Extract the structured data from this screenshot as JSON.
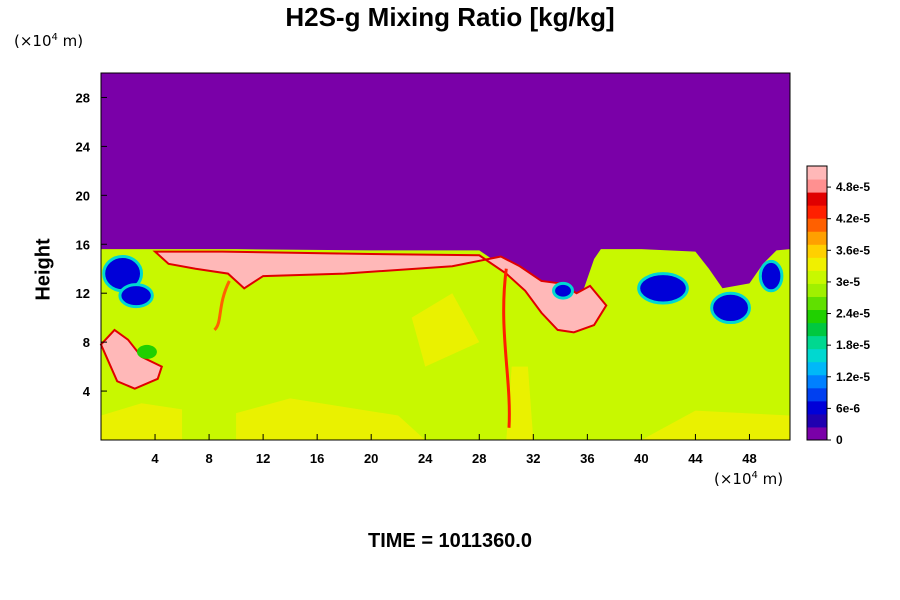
{
  "chart_data": {
    "type": "heatmap",
    "title": "H2S-g Mixing Ratio [kg/kg]",
    "ylabel": "Height",
    "xlabel": "",
    "x_unit": "(×10⁴ m)",
    "y_unit": "(×10⁴ m)",
    "footer": "TIME = 1011360.0",
    "xlim": [
      0,
      51
    ],
    "ylim": [
      0,
      30
    ],
    "x_ticks": [
      "4",
      "8",
      "12",
      "16",
      "20",
      "24",
      "28",
      "32",
      "36",
      "40",
      "44",
      "48"
    ],
    "y_ticks": [
      "4",
      "8",
      "12",
      "16",
      "20",
      "24",
      "28"
    ],
    "colorbar": {
      "vmin": 0,
      "vmax": 5.2e-05,
      "tick_labels": [
        "0",
        "6e-6",
        "1.2e-5",
        "1.8e-5",
        "2.4e-5",
        "3e-5",
        "3.6e-5",
        "4.2e-5",
        "4.8e-5"
      ],
      "colors": [
        "#7a00a8",
        "#2000b0",
        "#0000d8",
        "#0040f0",
        "#0080ff",
        "#00b8f8",
        "#00d8d0",
        "#00d890",
        "#00c840",
        "#20d000",
        "#60e000",
        "#a0f000",
        "#c8f800",
        "#f0f000",
        "#ffd000",
        "#ffa000",
        "#ff6000",
        "#ff2000",
        "#e00000",
        "#ff9090",
        "#ffb8b8"
      ]
    },
    "field_note_regions": {
      "upper_layer_value": 0,
      "lower_layer_typical_value": 3.4e-05,
      "max_region_value": 5.2e-05
    }
  }
}
